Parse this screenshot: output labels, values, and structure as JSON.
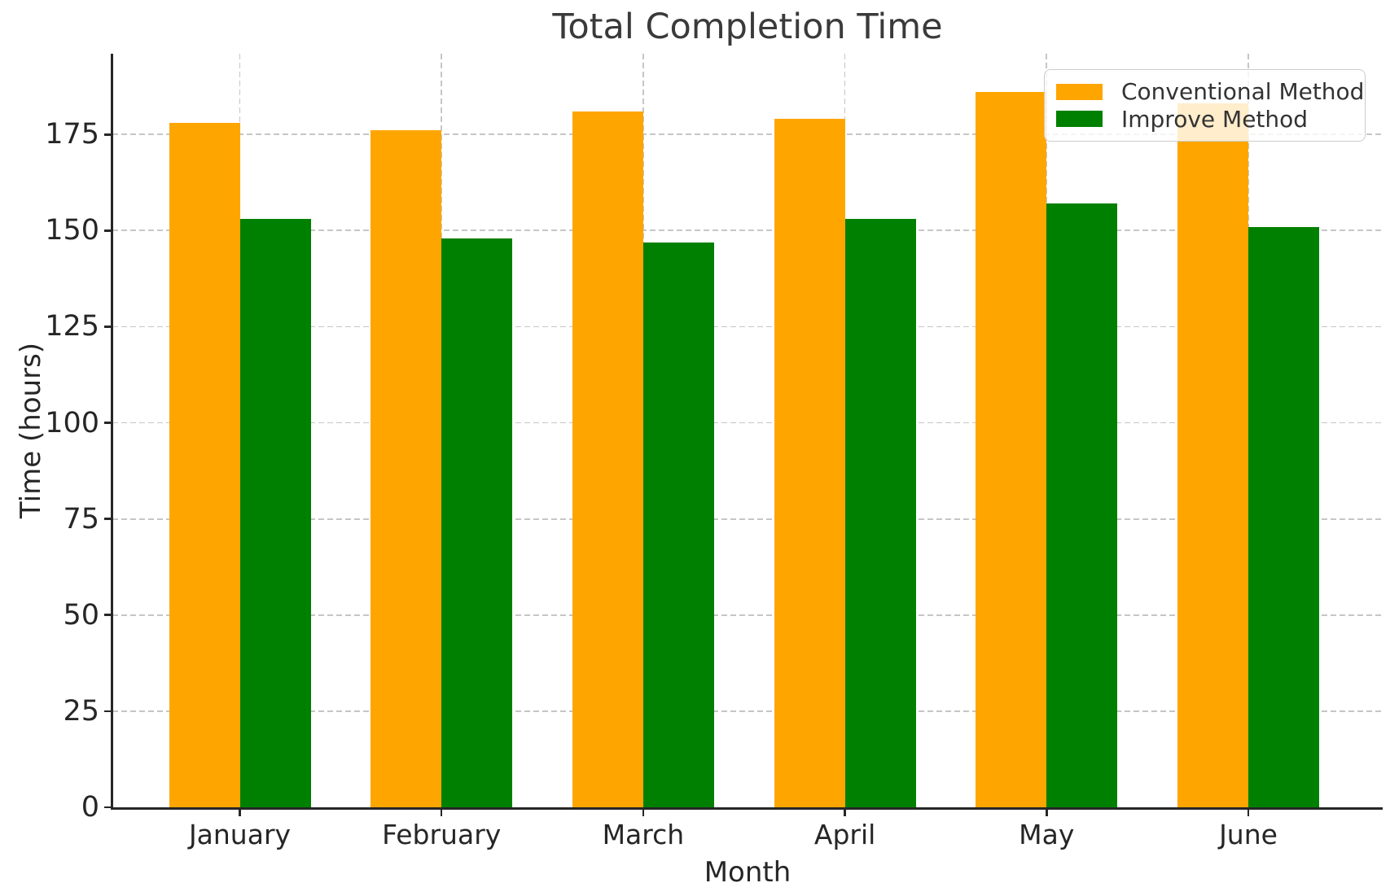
{
  "chart_data": {
    "type": "bar",
    "title": "Total Completion Time",
    "xlabel": "Month",
    "ylabel": "Time (hours)",
    "categories": [
      "January",
      "February",
      "March",
      "April",
      "May",
      "June"
    ],
    "series": [
      {
        "name": "Conventional Method",
        "color": "#FFA500",
        "values": [
          178,
          176,
          181,
          179,
          186,
          183
        ]
      },
      {
        "name": "Improve Method",
        "color": "#008000",
        "values": [
          153,
          148,
          147,
          153,
          157,
          151
        ]
      }
    ],
    "ylim": [
      0,
      196
    ],
    "yticks": [
      0,
      25,
      50,
      75,
      100,
      125,
      150,
      175
    ],
    "grid": "dashed-both-axes",
    "legend_position": "upper-right",
    "grid_color": "#c6c6c6",
    "axis_color": "#262626",
    "title_color": "#3a3a3a"
  }
}
